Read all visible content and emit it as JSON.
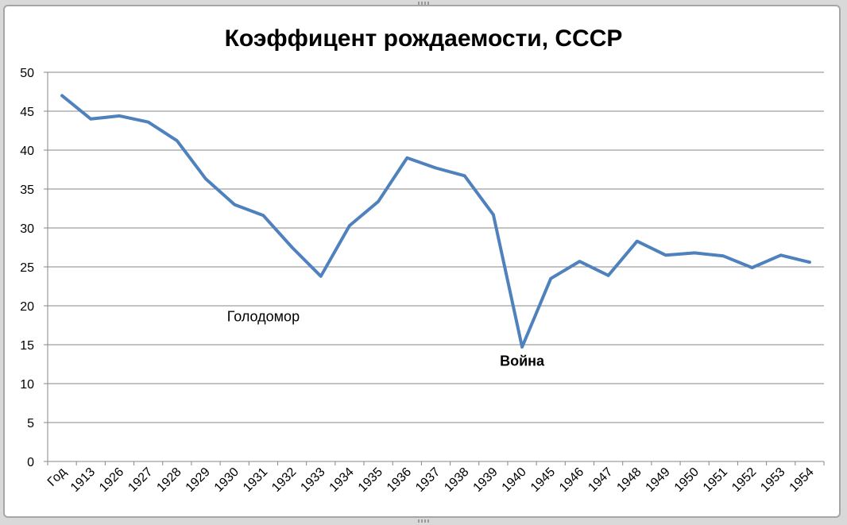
{
  "chart_data": {
    "type": "line",
    "title": "Коэффицент рождаемости, СССР",
    "xlabel": "",
    "ylabel": "",
    "ylim": [
      0,
      50
    ],
    "y_ticks": [
      "0",
      "5",
      "10",
      "15",
      "20",
      "25",
      "30",
      "35",
      "40",
      "45",
      "50"
    ],
    "categories": [
      "Год",
      "1913",
      "1926",
      "1927",
      "1928",
      "1929",
      "1930",
      "1931",
      "1932",
      "1933",
      "1934",
      "1935",
      "1936",
      "1937",
      "1938",
      "1939",
      "1940",
      "1945",
      "1946",
      "1947",
      "1948",
      "1949",
      "1950",
      "1951",
      "1952",
      "1953",
      "1954"
    ],
    "series": [
      {
        "values": [
          47.0,
          44.0,
          44.4,
          43.6,
          41.2,
          36.3,
          33.0,
          31.6,
          27.5,
          23.8,
          30.3,
          33.4,
          39.0,
          37.7,
          36.7,
          31.7,
          14.7,
          23.5,
          25.7,
          23.9,
          28.3,
          26.5,
          26.8,
          26.4,
          24.9,
          26.5,
          25.6
        ],
        "color": "#4f81bd"
      }
    ],
    "annotations": [
      {
        "text": "Голодомор",
        "category": "1931",
        "y": 18.0,
        "bold": false
      },
      {
        "text": "Война",
        "category": "1940",
        "y": 12.3,
        "bold": true
      }
    ],
    "grid": true,
    "legend": "none"
  }
}
